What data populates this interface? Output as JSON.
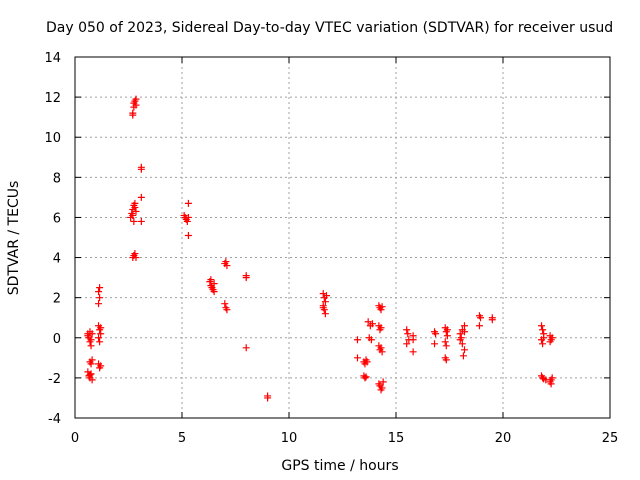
{
  "chart_data": {
    "type": "scatter",
    "title": "Day 050 of 2023, Sidereal Day-to-day VTEC variation (SDTVAR) for receiver usud",
    "xlabel": "GPS time / hours",
    "ylabel": "SDTVAR / TECUs",
    "xlim": [
      0,
      25
    ],
    "ylim": [
      -4,
      14
    ],
    "xticks": [
      "0",
      "5",
      "10",
      "15",
      "20",
      "25"
    ],
    "yticks": [
      "-4",
      "-2",
      "0",
      "2",
      "4",
      "6",
      "8",
      "10",
      "12",
      "14"
    ],
    "grid": true,
    "marker": "+",
    "color": "#ff0000",
    "series": [
      {
        "name": "SDTVAR",
        "points": [
          [
            0.6,
            0.2
          ],
          [
            0.65,
            0.0
          ],
          [
            0.7,
            -0.2
          ],
          [
            0.7,
            0.3
          ],
          [
            0.75,
            -0.4
          ],
          [
            0.6,
            0.1
          ],
          [
            0.8,
            0.2
          ],
          [
            0.75,
            -0.1
          ],
          [
            0.7,
            -1.2
          ],
          [
            0.75,
            -1.3
          ],
          [
            0.8,
            -1.1
          ],
          [
            0.6,
            -1.7
          ],
          [
            0.65,
            -1.9
          ],
          [
            0.7,
            -2.0
          ],
          [
            0.75,
            -1.8
          ],
          [
            0.8,
            -2.1
          ],
          [
            0.7,
            -1.85
          ],
          [
            1.1,
            0.6
          ],
          [
            1.15,
            0.4
          ],
          [
            1.2,
            0.2
          ],
          [
            1.1,
            0.0
          ],
          [
            1.15,
            -0.2
          ],
          [
            1.2,
            0.5
          ],
          [
            1.1,
            1.7
          ],
          [
            1.15,
            2.0
          ],
          [
            1.1,
            2.3
          ],
          [
            1.15,
            2.5
          ],
          [
            1.1,
            -1.3
          ],
          [
            1.15,
            -1.5
          ],
          [
            1.2,
            -1.4
          ],
          [
            2.7,
            11.2
          ],
          [
            2.75,
            11.5
          ],
          [
            2.8,
            11.8
          ],
          [
            2.85,
            11.9
          ],
          [
            2.75,
            11.7
          ],
          [
            2.85,
            11.6
          ],
          [
            2.7,
            11.1
          ],
          [
            2.6,
            6.0
          ],
          [
            2.65,
            6.2
          ],
          [
            2.7,
            6.4
          ],
          [
            2.75,
            6.6
          ],
          [
            2.8,
            6.7
          ],
          [
            2.85,
            6.3
          ],
          [
            2.7,
            6.1
          ],
          [
            2.75,
            5.8
          ],
          [
            2.8,
            6.5
          ],
          [
            2.7,
            4.0
          ],
          [
            2.75,
            4.1
          ],
          [
            2.8,
            4.2
          ],
          [
            2.85,
            4.0
          ],
          [
            3.1,
            8.5
          ],
          [
            3.1,
            8.4
          ],
          [
            3.1,
            7.0
          ],
          [
            3.1,
            5.8
          ],
          [
            5.1,
            6.1
          ],
          [
            5.15,
            6.0
          ],
          [
            5.2,
            5.9
          ],
          [
            5.25,
            5.8
          ],
          [
            5.3,
            6.0
          ],
          [
            5.3,
            6.7
          ],
          [
            5.3,
            5.1
          ],
          [
            6.3,
            2.8
          ],
          [
            6.35,
            2.6
          ],
          [
            6.4,
            2.5
          ],
          [
            6.45,
            2.4
          ],
          [
            6.5,
            2.3
          ],
          [
            6.35,
            2.9
          ],
          [
            6.5,
            2.7
          ],
          [
            7.0,
            3.7
          ],
          [
            7.05,
            3.8
          ],
          [
            7.1,
            3.6
          ],
          [
            7.0,
            1.7
          ],
          [
            7.05,
            1.5
          ],
          [
            7.1,
            1.4
          ],
          [
            8.0,
            3.1
          ],
          [
            8.0,
            3.0
          ],
          [
            8.0,
            -0.5
          ],
          [
            9.0,
            -2.9
          ],
          [
            9.0,
            -3.0
          ],
          [
            11.6,
            2.2
          ],
          [
            11.65,
            2.0
          ],
          [
            11.7,
            1.8
          ],
          [
            11.6,
            1.6
          ],
          [
            11.65,
            1.4
          ],
          [
            11.7,
            1.2
          ],
          [
            11.75,
            2.1
          ],
          [
            11.6,
            1.5
          ],
          [
            13.2,
            -0.1
          ],
          [
            13.2,
            -1.0
          ],
          [
            13.5,
            -1.2
          ],
          [
            13.55,
            -1.3
          ],
          [
            13.6,
            -1.1
          ],
          [
            13.65,
            -1.2
          ],
          [
            13.5,
            -1.9
          ],
          [
            13.55,
            -2.0
          ],
          [
            13.6,
            -1.95
          ],
          [
            13.7,
            0.8
          ],
          [
            13.8,
            0.6
          ],
          [
            13.75,
            0.0
          ],
          [
            13.85,
            -0.1
          ],
          [
            13.9,
            0.7
          ],
          [
            14.2,
            1.6
          ],
          [
            14.25,
            1.5
          ],
          [
            14.3,
            1.4
          ],
          [
            14.35,
            1.55
          ],
          [
            14.2,
            0.6
          ],
          [
            14.3,
            0.5
          ],
          [
            14.25,
            0.4
          ],
          [
            14.2,
            -0.4
          ],
          [
            14.25,
            -0.6
          ],
          [
            14.3,
            -0.5
          ],
          [
            14.35,
            -0.7
          ],
          [
            14.2,
            -2.3
          ],
          [
            14.25,
            -2.4
          ],
          [
            14.3,
            -2.6
          ],
          [
            14.35,
            -2.5
          ],
          [
            14.4,
            -2.2
          ],
          [
            15.5,
            0.4
          ],
          [
            15.55,
            0.2
          ],
          [
            15.6,
            -0.1
          ],
          [
            15.5,
            -0.3
          ],
          [
            15.8,
            0.1
          ],
          [
            15.8,
            -0.1
          ],
          [
            15.8,
            -0.7
          ],
          [
            16.8,
            0.3
          ],
          [
            16.85,
            0.2
          ],
          [
            16.8,
            -0.3
          ],
          [
            17.3,
            0.5
          ],
          [
            17.35,
            0.3
          ],
          [
            17.4,
            0.1
          ],
          [
            17.3,
            -0.2
          ],
          [
            17.35,
            -0.4
          ],
          [
            17.4,
            0.4
          ],
          [
            17.3,
            -1.0
          ],
          [
            17.35,
            -1.1
          ],
          [
            18.0,
            0.2
          ],
          [
            18.1,
            0.4
          ],
          [
            18.2,
            0.6
          ],
          [
            18.0,
            -0.1
          ],
          [
            18.1,
            -0.3
          ],
          [
            18.2,
            -0.6
          ],
          [
            18.15,
            -0.9
          ],
          [
            18.05,
            0.0
          ],
          [
            18.2,
            0.3
          ],
          [
            18.9,
            1.1
          ],
          [
            18.95,
            1.0
          ],
          [
            18.9,
            0.6
          ],
          [
            19.5,
            1.0
          ],
          [
            19.5,
            0.9
          ],
          [
            21.8,
            0.6
          ],
          [
            21.85,
            0.4
          ],
          [
            21.9,
            0.2
          ],
          [
            21.8,
            -0.1
          ],
          [
            21.85,
            -0.3
          ],
          [
            21.9,
            0.0
          ],
          [
            21.8,
            -1.9
          ],
          [
            21.85,
            -2.0
          ],
          [
            21.9,
            -2.05
          ],
          [
            22.0,
            -2.1
          ],
          [
            22.2,
            0.1
          ],
          [
            22.25,
            -0.1
          ],
          [
            22.3,
            0.0
          ],
          [
            22.2,
            -0.2
          ],
          [
            22.2,
            -2.2
          ],
          [
            22.25,
            -2.1
          ],
          [
            22.3,
            -2.0
          ],
          [
            22.25,
            -2.3
          ]
        ]
      }
    ]
  }
}
